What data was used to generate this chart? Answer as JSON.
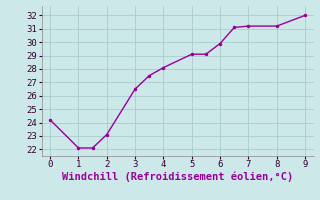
{
  "x": [
    0,
    1,
    1.5,
    2,
    3,
    3.5,
    4,
    5,
    5.5,
    6,
    6.5,
    7,
    8,
    9
  ],
  "y": [
    24.2,
    22.1,
    22.1,
    23.1,
    26.5,
    27.5,
    28.1,
    29.1,
    29.1,
    29.9,
    31.1,
    31.2,
    31.2,
    32.0
  ],
  "line_color": "#990099",
  "marker": ".",
  "marker_color": "#990099",
  "marker_size": 3,
  "xlabel": "Windchill (Refroidissement éolien,°C)",
  "xlim": [
    -0.3,
    9.3
  ],
  "ylim": [
    21.5,
    32.7
  ],
  "xticks": [
    0,
    1,
    2,
    3,
    4,
    5,
    6,
    7,
    8,
    9
  ],
  "yticks": [
    22,
    23,
    24,
    25,
    26,
    27,
    28,
    29,
    30,
    31,
    32
  ],
  "background_color": "#cce8e8",
  "grid_color": "#aacccc",
  "tick_fontsize": 6.5,
  "xlabel_fontsize": 7.5,
  "line_width": 1.0
}
